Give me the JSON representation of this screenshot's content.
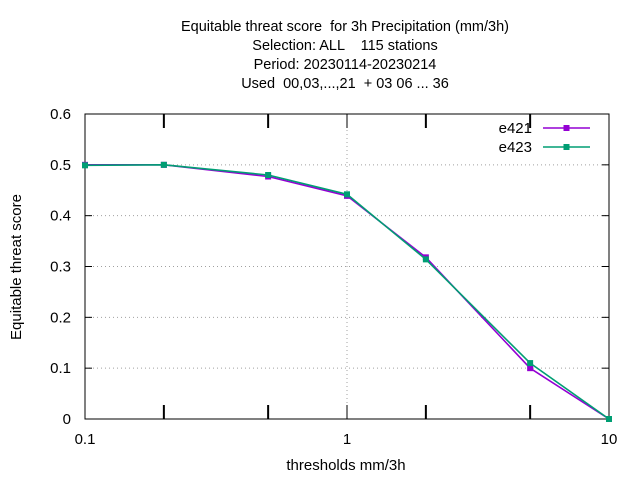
{
  "chart_data": {
    "type": "line",
    "title_lines": [
      "Equitable threat score  for 3h Precipitation (mm/3h)",
      "Selection: ALL    115 stations",
      "Period: 20230114-20230214",
      "Used  00,03,...,21  + 03 06 ... 36"
    ],
    "xlabel": "thresholds mm/3h",
    "ylabel": "Equitable threat score",
    "x_scale": "log",
    "xlim": [
      0.1,
      10
    ],
    "ylim": [
      0,
      0.6
    ],
    "x_ticks": [
      0.1,
      1,
      10
    ],
    "x_tick_labels": [
      "0.1",
      "1",
      "10"
    ],
    "y_ticks": [
      0,
      0.1,
      0.2,
      0.3,
      0.4,
      0.5,
      0.6
    ],
    "y_tick_labels": [
      "0",
      "0.1",
      "0.2",
      "0.3",
      "0.4",
      "0.5",
      "0.6"
    ],
    "grid": true,
    "legend_position": "top-right",
    "series": [
      {
        "name": "e421",
        "color": "#9400d3",
        "x": [
          0.1,
          0.2,
          0.5,
          1,
          2,
          5,
          10
        ],
        "y": [
          0.5,
          0.5,
          0.477,
          0.439,
          0.318,
          0.1,
          0.0
        ]
      },
      {
        "name": "e423",
        "color": "#009e73",
        "x": [
          0.1,
          0.2,
          0.5,
          1,
          2,
          5,
          10
        ],
        "y": [
          0.499,
          0.5,
          0.48,
          0.442,
          0.314,
          0.11,
          0.0
        ]
      }
    ]
  }
}
